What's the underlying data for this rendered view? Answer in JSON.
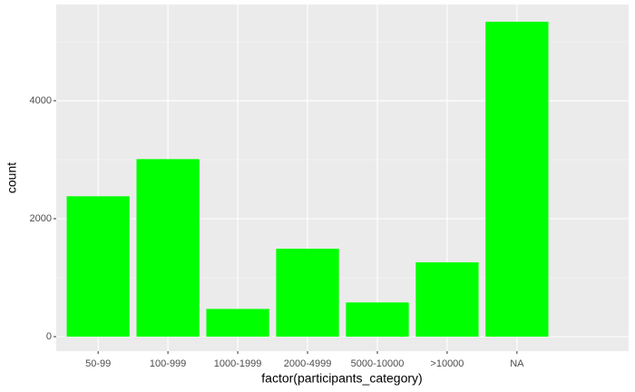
{
  "chart_data": {
    "type": "bar",
    "x_label": "factor(participants_category)",
    "y_label": "count",
    "categories": [
      "50-99",
      "100-999",
      "1000-1999",
      "2000-4999",
      "5000-10000",
      ">10000",
      "NA"
    ],
    "values": [
      2380,
      3010,
      470,
      1490,
      580,
      1260,
      5340
    ],
    "color": "#00ff00",
    "ylim": [
      -246,
      5631
    ],
    "yticks": [
      0,
      2000,
      4000
    ],
    "minor_yticks": [
      1000,
      3000,
      5000
    ],
    "grid": true
  }
}
